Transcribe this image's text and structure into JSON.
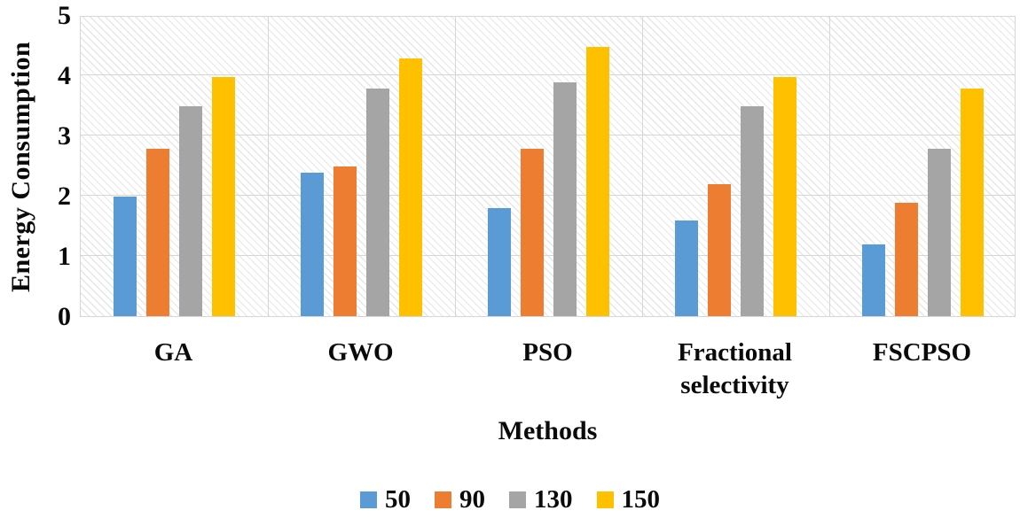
{
  "chart_data": {
    "type": "bar",
    "title": "",
    "xlabel": "Methods",
    "ylabel": "Energy Consumption",
    "categories": [
      "GA",
      "GWO",
      "PSO",
      "Fractional selectivity",
      "FSCPSO"
    ],
    "series": [
      {
        "name": "50",
        "color": "#5B9BD5",
        "values": [
          2.0,
          2.4,
          1.8,
          1.6,
          1.2
        ]
      },
      {
        "name": "90",
        "color": "#ED7D31",
        "values": [
          2.8,
          2.5,
          2.8,
          2.2,
          1.9
        ]
      },
      {
        "name": "130",
        "color": "#A5A5A5",
        "values": [
          3.5,
          3.8,
          3.9,
          3.5,
          2.8
        ]
      },
      {
        "name": "150",
        "color": "#FFC000",
        "values": [
          4.0,
          4.3,
          4.5,
          4.0,
          3.8
        ]
      }
    ],
    "ylim": [
      0,
      5
    ],
    "yticks": [
      0,
      1,
      2,
      3,
      4,
      5
    ],
    "grid": true,
    "legend_position": "bottom",
    "plot_background": "diagonal-hatch"
  },
  "colors": {
    "gridline": "#d6d6d6",
    "text": "#0a0a0a",
    "background": "#ffffff"
  }
}
